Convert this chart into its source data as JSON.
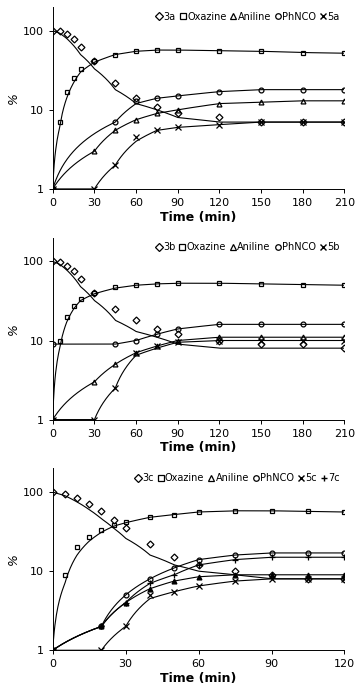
{
  "panels": [
    {
      "title_species": "3a",
      "xmax": 210,
      "xticks": [
        0,
        30,
        60,
        90,
        120,
        150,
        180,
        210
      ],
      "legend_entries": [
        "3a",
        "Oxazine",
        "Aniline",
        "PhNCO",
        "5a"
      ],
      "legend_markers": [
        "D",
        "s",
        "^",
        "o",
        "x"
      ],
      "series": [
        {
          "name": "3a",
          "marker": "D",
          "markersize": 3.5,
          "color": "black",
          "filled": false,
          "x": [
            0,
            5,
            10,
            15,
            20,
            30,
            45,
            60,
            75,
            90,
            120,
            150,
            180,
            210
          ],
          "y": [
            100,
            98,
            90,
            78,
            62,
            42,
            22,
            14,
            11,
            9,
            8,
            7,
            7,
            7
          ],
          "fit_y": [
            100,
            93,
            80,
            65,
            50,
            33,
            18,
            12,
            10,
            8,
            7,
            7,
            7,
            7
          ]
        },
        {
          "name": "Oxazine",
          "marker": "s",
          "markersize": 3.5,
          "color": "black",
          "filled": false,
          "x": [
            0,
            5,
            10,
            15,
            20,
            30,
            45,
            60,
            75,
            90,
            120,
            150,
            180,
            210
          ],
          "y": [
            1,
            7,
            17,
            25,
            33,
            42,
            50,
            55,
            57,
            57,
            56,
            55,
            53,
            52
          ],
          "fit_y": [
            1,
            6,
            14,
            22,
            30,
            40,
            50,
            55,
            57,
            57,
            56,
            55,
            53,
            52
          ]
        },
        {
          "name": "Aniline",
          "marker": "^",
          "markersize": 3.5,
          "color": "black",
          "filled": false,
          "x": [
            0,
            30,
            45,
            60,
            75,
            90,
            120,
            150,
            180,
            210
          ],
          "y": [
            1,
            3,
            5.5,
            7.5,
            9,
            10,
            12,
            12.5,
            13,
            13
          ],
          "fit_y": [
            1,
            3,
            5.5,
            7.5,
            9,
            10,
            12,
            12.5,
            13,
            13
          ]
        },
        {
          "name": "PhNCO",
          "marker": "o",
          "markersize": 3.5,
          "color": "black",
          "filled": false,
          "x": [
            0,
            45,
            60,
            75,
            90,
            120,
            150,
            180,
            210
          ],
          "y": [
            1,
            7,
            13,
            14,
            15,
            17,
            18,
            18,
            18
          ],
          "fit_y": [
            1,
            7,
            12,
            14,
            15,
            17,
            18,
            18,
            18
          ]
        },
        {
          "name": "5a",
          "marker": "x",
          "markersize": 4.5,
          "color": "black",
          "filled": true,
          "x": [
            0,
            30,
            45,
            60,
            75,
            90,
            120,
            150,
            180,
            210
          ],
          "y": [
            1,
            1,
            2,
            4.5,
            5.5,
            6,
            6.5,
            7,
            7,
            7
          ],
          "fit_y": [
            1,
            1,
            2,
            4,
            5.5,
            6,
            6.5,
            7,
            7,
            7
          ]
        }
      ]
    },
    {
      "title_species": "3b",
      "xmax": 210,
      "xticks": [
        0,
        30,
        60,
        90,
        120,
        150,
        180,
        210
      ],
      "legend_entries": [
        "3b",
        "Oxazine",
        "Aniline",
        "PhNCO",
        "5b"
      ],
      "legend_markers": [
        "D",
        "s",
        "^",
        "o",
        "x"
      ],
      "series": [
        {
          "name": "3b",
          "marker": "D",
          "markersize": 3.5,
          "color": "black",
          "filled": false,
          "x": [
            0,
            5,
            10,
            15,
            20,
            30,
            45,
            60,
            75,
            90,
            120,
            150,
            180,
            210
          ],
          "y": [
            100,
            97,
            87,
            75,
            60,
            40,
            25,
            18,
            14,
            12,
            10,
            9,
            9,
            8
          ],
          "fit_y": [
            100,
            92,
            78,
            63,
            48,
            32,
            18,
            13,
            11,
            9,
            8,
            8,
            8,
            8
          ]
        },
        {
          "name": "Oxazine",
          "marker": "s",
          "markersize": 3.5,
          "color": "black",
          "filled": false,
          "x": [
            0,
            5,
            10,
            15,
            20,
            30,
            45,
            60,
            75,
            90,
            120,
            150,
            180,
            210
          ],
          "y": [
            1,
            10,
            20,
            27,
            33,
            40,
            47,
            50,
            52,
            53,
            53,
            52,
            51,
            50
          ],
          "fit_y": [
            1,
            8,
            17,
            25,
            32,
            39,
            46,
            50,
            52,
            53,
            53,
            52,
            51,
            50
          ]
        },
        {
          "name": "Aniline",
          "marker": "^",
          "markersize": 3.5,
          "color": "black",
          "filled": false,
          "x": [
            0,
            30,
            45,
            60,
            75,
            90,
            120,
            150,
            180,
            210
          ],
          "y": [
            1,
            3,
            5,
            7,
            8.5,
            10,
            11,
            11,
            11,
            11
          ],
          "fit_y": [
            1,
            3,
            5,
            7,
            8.5,
            10,
            11,
            11,
            11,
            11
          ]
        },
        {
          "name": "PhNCO",
          "marker": "o",
          "markersize": 3.5,
          "color": "black",
          "filled": false,
          "x": [
            0,
            45,
            60,
            75,
            90,
            120,
            150,
            180,
            210
          ],
          "y": [
            9,
            9,
            10,
            12,
            14,
            16,
            16,
            16,
            16
          ],
          "fit_y": [
            9,
            9,
            10,
            12,
            14,
            16,
            16,
            16,
            16
          ]
        },
        {
          "name": "5b",
          "marker": "x",
          "markersize": 4.5,
          "color": "black",
          "filled": true,
          "x": [
            0,
            30,
            45,
            60,
            75,
            90,
            120,
            150,
            180,
            210
          ],
          "y": [
            1,
            1,
            2.5,
            7,
            8.5,
            9.5,
            10,
            10,
            10,
            10
          ],
          "fit_y": [
            1,
            1,
            2.5,
            6.5,
            8,
            9.5,
            10,
            10,
            10,
            10
          ]
        }
      ]
    },
    {
      "title_species": "3c",
      "xmax": 120,
      "xticks": [
        0,
        30,
        60,
        90,
        120
      ],
      "legend_entries": [
        "3c",
        "Oxazine",
        "Aniline",
        "PhNCO",
        "5c",
        "7c"
      ],
      "legend_markers": [
        "D",
        "s",
        "^",
        "o",
        "x",
        "+"
      ],
      "series": [
        {
          "name": "3c",
          "marker": "D",
          "markersize": 3.5,
          "color": "black",
          "filled": false,
          "x": [
            0,
            5,
            10,
            15,
            20,
            25,
            30,
            40,
            50,
            60,
            75,
            90,
            105,
            120
          ],
          "y": [
            100,
            95,
            83,
            70,
            57,
            45,
            35,
            22,
            15,
            12,
            10,
            9,
            8,
            8
          ],
          "fit_y": [
            100,
            90,
            75,
            60,
            46,
            35,
            26,
            16,
            12,
            10,
            9,
            8,
            8,
            8
          ]
        },
        {
          "name": "Oxazine",
          "marker": "s",
          "markersize": 3.5,
          "color": "black",
          "filled": false,
          "x": [
            0,
            5,
            10,
            15,
            20,
            25,
            30,
            40,
            50,
            60,
            75,
            90,
            105,
            120
          ],
          "y": [
            1,
            9,
            20,
            27,
            33,
            38,
            42,
            48,
            52,
            56,
            58,
            58,
            57,
            56
          ],
          "fit_y": [
            1,
            7,
            16,
            24,
            31,
            37,
            41,
            48,
            52,
            56,
            58,
            58,
            57,
            56
          ]
        },
        {
          "name": "Aniline",
          "marker": "^",
          "markersize": 3.5,
          "color": "black",
          "filled": true,
          "x": [
            0,
            20,
            30,
            40,
            50,
            60,
            75,
            90,
            105,
            120
          ],
          "y": [
            1,
            2,
            4,
            6,
            7.5,
            8.5,
            9,
            9,
            9,
            9
          ],
          "fit_y": [
            1,
            2,
            4,
            6,
            7.5,
            8.5,
            9,
            9,
            9,
            9
          ]
        },
        {
          "name": "PhNCO",
          "marker": "o",
          "markersize": 3.5,
          "color": "black",
          "filled": false,
          "x": [
            0,
            20,
            30,
            40,
            50,
            60,
            75,
            90,
            105,
            120
          ],
          "y": [
            1,
            2,
            5,
            8,
            11,
            14,
            16,
            17,
            17,
            17
          ],
          "fit_y": [
            1,
            2,
            5,
            8,
            11,
            14,
            16,
            17,
            17,
            17
          ]
        },
        {
          "name": "5c",
          "marker": "x",
          "markersize": 4.5,
          "color": "black",
          "filled": true,
          "x": [
            0,
            20,
            30,
            40,
            50,
            60,
            75,
            90,
            105,
            120
          ],
          "y": [
            1,
            1,
            2,
            5,
            5.5,
            6.5,
            7.5,
            8,
            8,
            8
          ],
          "fit_y": [
            1,
            1,
            2,
            4.5,
            5.5,
            6.5,
            7.5,
            8,
            8,
            8
          ]
        },
        {
          "name": "7c",
          "marker": "+",
          "markersize": 5,
          "color": "black",
          "filled": true,
          "x": [
            0,
            20,
            30,
            40,
            50,
            60,
            75,
            90,
            105,
            120
          ],
          "y": [
            1,
            2,
            4,
            7,
            9,
            12,
            14,
            15,
            15,
            15
          ],
          "fit_y": [
            1,
            2,
            4,
            7,
            9,
            12,
            14,
            15,
            15,
            15
          ]
        }
      ]
    }
  ],
  "ylabel": "%",
  "xlabel": "Time (min)",
  "ylim": [
    1,
    200
  ],
  "yticks": [
    1,
    10,
    100
  ],
  "yticklabels": [
    "1",
    "10",
    "100"
  ],
  "background_color": "#ffffff",
  "fontsize_legend": 7,
  "fontsize_label": 9,
  "fontsize_tick": 8
}
